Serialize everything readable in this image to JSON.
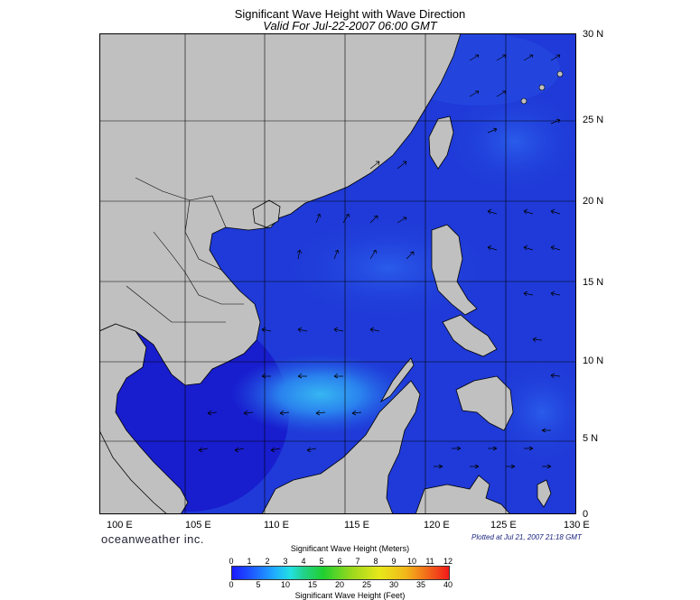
{
  "header": {
    "title": "Significant Wave Height with Wave Direction",
    "subtitle": "Valid For Jul-22-2007 06:00 GMT"
  },
  "axes": {
    "lon_labels": [
      "100 E",
      "105 E",
      "110 E",
      "115 E",
      "120 E",
      "125 E",
      "130 E"
    ],
    "lat_labels": [
      "30 N",
      "25 N",
      "20 N",
      "15 N",
      "10 N",
      "5 N",
      "0"
    ],
    "lon_range": [
      99,
      129
    ],
    "lat_range": [
      -0.1,
      30
    ]
  },
  "footer": {
    "brand": "oceanweather inc.",
    "plotted": "Plotted at Jul 21, 2007 21:18 GMT"
  },
  "legend": {
    "meters_title": "Significant Wave Height (Meters)",
    "feet_title": "Significant Wave Height (Feet)",
    "meters_ticks": [
      "0",
      "1",
      "2",
      "3",
      "4",
      "5",
      "6",
      "7",
      "8",
      "9",
      "10",
      "11",
      "12"
    ],
    "feet_ticks": [
      "0",
      "5",
      "10",
      "15",
      "20",
      "25",
      "30",
      "35",
      "40"
    ]
  },
  "colors": {
    "land": "#c0c0c0",
    "sea_base": "#1f3ad8",
    "sea_calm": "#1212c8",
    "sea_high": "#2c8cf0"
  }
}
